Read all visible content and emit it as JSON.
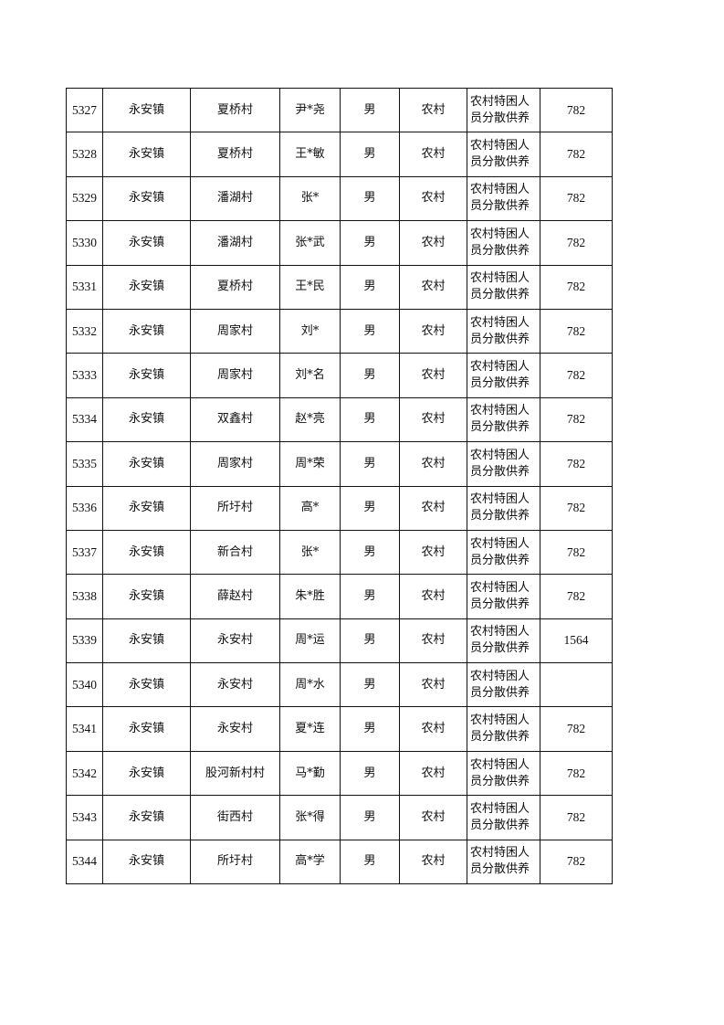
{
  "rows": [
    [
      "5327",
      "永安镇",
      "夏桥村",
      "尹*尧",
      "男",
      "农村",
      "农村特困人员分散供养",
      "782"
    ],
    [
      "5328",
      "永安镇",
      "夏桥村",
      "王*敏",
      "男",
      "农村",
      "农村特困人员分散供养",
      "782"
    ],
    [
      "5329",
      "永安镇",
      "潘湖村",
      "张*",
      "男",
      "农村",
      "农村特困人员分散供养",
      "782"
    ],
    [
      "5330",
      "永安镇",
      "潘湖村",
      "张*武",
      "男",
      "农村",
      "农村特困人员分散供养",
      "782"
    ],
    [
      "5331",
      "永安镇",
      "夏桥村",
      "王*民",
      "男",
      "农村",
      "农村特困人员分散供养",
      "782"
    ],
    [
      "5332",
      "永安镇",
      "周家村",
      "刘*",
      "男",
      "农村",
      "农村特困人员分散供养",
      "782"
    ],
    [
      "5333",
      "永安镇",
      "周家村",
      "刘*名",
      "男",
      "农村",
      "农村特困人员分散供养",
      "782"
    ],
    [
      "5334",
      "永安镇",
      "双鑫村",
      "赵*亮",
      "男",
      "农村",
      "农村特困人员分散供养",
      "782"
    ],
    [
      "5335",
      "永安镇",
      "周家村",
      "周*荣",
      "男",
      "农村",
      "农村特困人员分散供养",
      "782"
    ],
    [
      "5336",
      "永安镇",
      "所圩村",
      "高*",
      "男",
      "农村",
      "农村特困人员分散供养",
      "782"
    ],
    [
      "5337",
      "永安镇",
      "新合村",
      "张*",
      "男",
      "农村",
      "农村特困人员分散供养",
      "782"
    ],
    [
      "5338",
      "永安镇",
      "薛赵村",
      "朱*胜",
      "男",
      "农村",
      "农村特困人员分散供养",
      "782"
    ],
    [
      "5339",
      "永安镇",
      "永安村",
      "周*运",
      "男",
      "农村",
      "农村特困人员分散供养",
      "1564"
    ],
    [
      "5340",
      "永安镇",
      "永安村",
      "周*水",
      "男",
      "农村",
      "农村特困人员分散供养",
      ""
    ],
    [
      "5341",
      "永安镇",
      "永安村",
      "夏*连",
      "男",
      "农村",
      "农村特困人员分散供养",
      "782"
    ],
    [
      "5342",
      "永安镇",
      "股河新村村",
      "马*勤",
      "男",
      "农村",
      "农村特困人员分散供养",
      "782"
    ],
    [
      "5343",
      "永安镇",
      "街西村",
      "张*得",
      "男",
      "农村",
      "农村特困人员分散供养",
      "782"
    ],
    [
      "5344",
      "永安镇",
      "所圩村",
      "高*学",
      "男",
      "农村",
      "农村特困人员分散供养",
      "782"
    ]
  ]
}
